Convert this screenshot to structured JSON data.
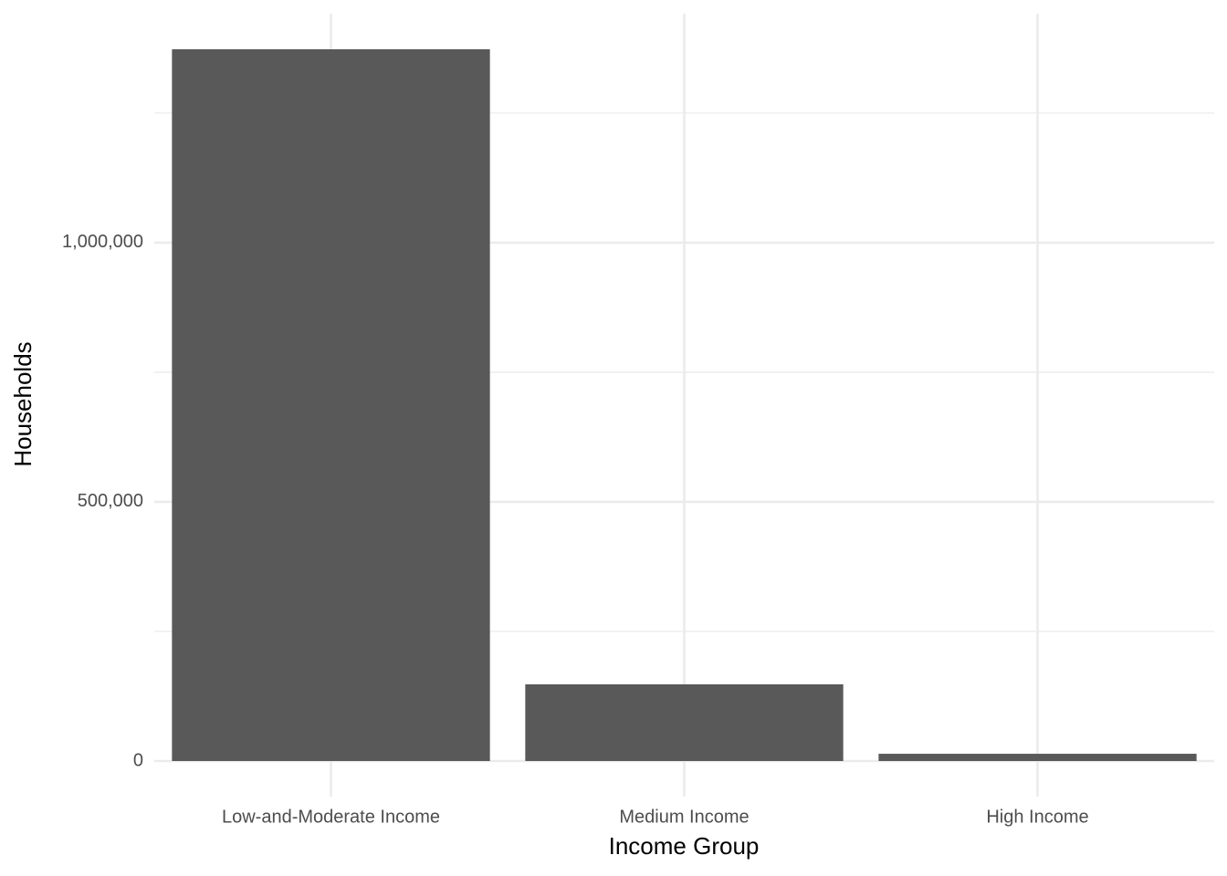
{
  "chart_data": {
    "type": "bar",
    "x_label": "Income Group",
    "y_label": "Households",
    "categories": [
      "Low-and-Moderate Income",
      "Medium Income",
      "High Income"
    ],
    "values": [
      1373000,
      148000,
      14000
    ],
    "color": "#595959",
    "ylim": [
      -68650,
      1441650
    ],
    "yticks": [
      0,
      {
        "value": 500000,
        "label": "500,000"
      },
      {
        "value": 1000000,
        "label": "1,000,000"
      }
    ],
    "minor_yticks": [
      250000,
      750000,
      1250000
    ],
    "grid": true
  }
}
